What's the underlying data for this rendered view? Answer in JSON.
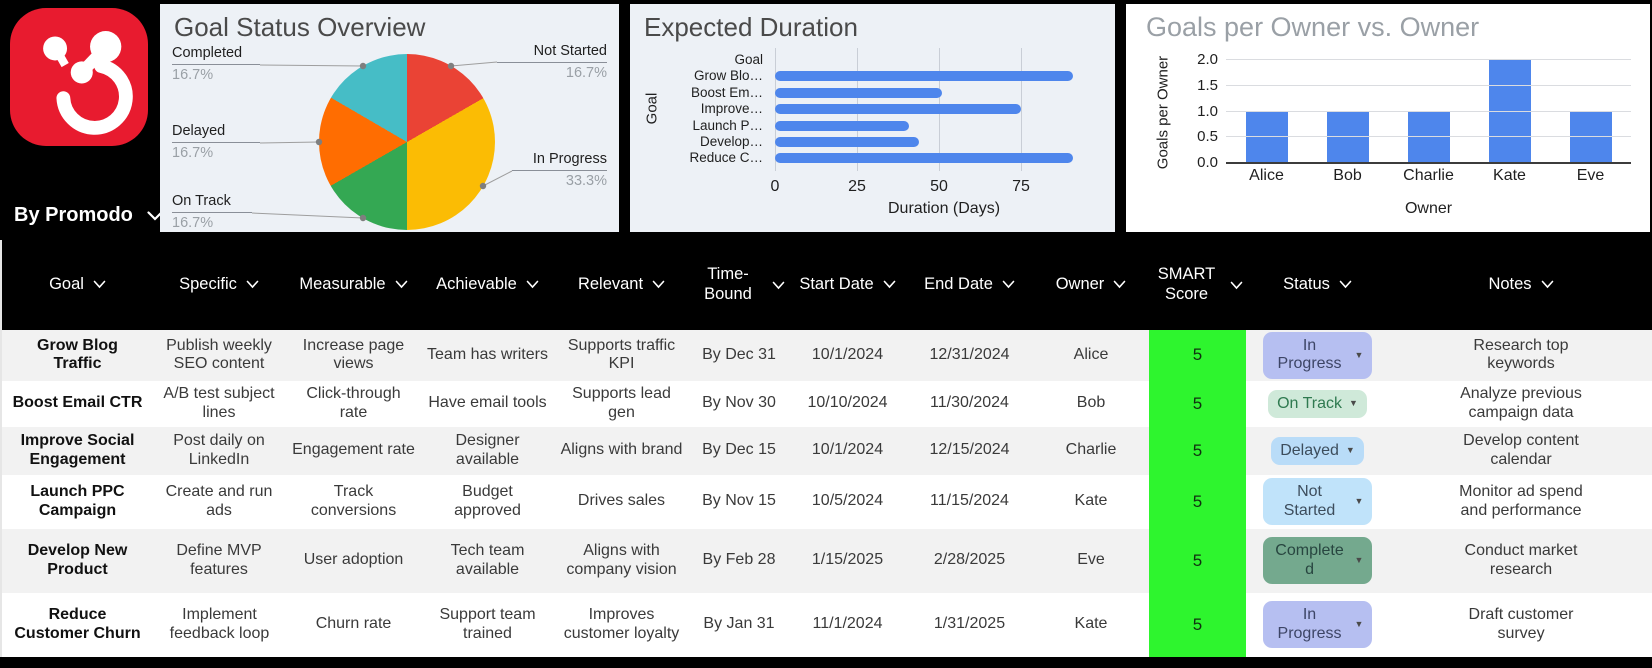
{
  "brand": {
    "by_label": "By Promodo",
    "logo_bg": "#e81b2f"
  },
  "chart_data": [
    {
      "type": "pie",
      "title": "Goal Status Overview",
      "legend_position": "outside-labels",
      "slices": [
        {
          "label": "Not Started",
          "value": 16.7,
          "pct_label": "16.7%",
          "color": "#ea4335"
        },
        {
          "label": "In Progress",
          "value": 33.3,
          "pct_label": "33.3%",
          "color": "#fbbc04"
        },
        {
          "label": "On Track",
          "value": 16.7,
          "pct_label": "16.7%",
          "color": "#34a853"
        },
        {
          "label": "Delayed",
          "value": 16.7,
          "pct_label": "16.7%",
          "color": "#ff6d01"
        },
        {
          "label": "Completed",
          "value": 16.7,
          "pct_label": "16.7%",
          "color": "#46bdc6"
        }
      ]
    },
    {
      "type": "bar",
      "orientation": "horizontal",
      "title": "Expected Duration",
      "xlabel": "Duration (Days)",
      "ylabel": "Goal",
      "categories": [
        "Goal",
        "Grow Blo…",
        "Boost Em…",
        "Improve…",
        "Launch P…",
        "Develop…",
        "Reduce C…"
      ],
      "values": [
        null,
        91,
        51,
        75,
        41,
        44,
        91
      ],
      "xticks": [
        0,
        25,
        50,
        75
      ],
      "xlim": [
        0,
        103
      ],
      "grid": true,
      "bar_color": "#4e86ec"
    },
    {
      "type": "bar",
      "orientation": "vertical",
      "title": "Goals per Owner vs. Owner",
      "xlabel": "Owner",
      "ylabel": "Goals per Owner",
      "categories": [
        "Alice",
        "Bob",
        "Charlie",
        "Kate",
        "Eve"
      ],
      "values": [
        1,
        1,
        1,
        2,
        1
      ],
      "yticks": [
        "2.0",
        "1.5",
        "1.0",
        "0.5",
        "0.0"
      ],
      "ylim": [
        0,
        2
      ],
      "grid": true,
      "bar_color": "#4e86ec"
    }
  ],
  "table": {
    "score_bg": "#2ef52e",
    "status_styles": {
      "In Progress": {
        "bg": "#b6bff1",
        "fg": "#3d4566"
      },
      "On Track": {
        "bg": "#cfe9d9",
        "fg": "#2f7a50"
      },
      "Delayed": {
        "bg": "#b9dcf8",
        "fg": "#3d4d5c"
      },
      "Not Started": {
        "bg": "#c0e3fa",
        "fg": "#3d4d5c"
      },
      "Completed": {
        "bg": "#74a98e",
        "fg": "#284640"
      }
    },
    "columns": [
      {
        "key": "goal",
        "label": "Goal"
      },
      {
        "key": "specific",
        "label": "Specific"
      },
      {
        "key": "measurable",
        "label": "Measurable"
      },
      {
        "key": "achievable",
        "label": "Achievable"
      },
      {
        "key": "relevant",
        "label": "Relevant"
      },
      {
        "key": "time_bound",
        "label": "Time-Bound"
      },
      {
        "key": "start_date",
        "label": "Start Date"
      },
      {
        "key": "end_date",
        "label": "End Date"
      },
      {
        "key": "owner",
        "label": "Owner"
      },
      {
        "key": "smart_score",
        "label": "SMART Score"
      },
      {
        "key": "status",
        "label": "Status"
      },
      {
        "key": "notes",
        "label": "Notes"
      }
    ],
    "rows": [
      {
        "goal": "Grow Blog Traffic",
        "specific": "Publish weekly SEO content",
        "measurable": "Increase page views",
        "achievable": "Team has writers",
        "relevant": "Supports traffic KPI",
        "time_bound": "By Dec 31",
        "start_date": "10/1/2024",
        "end_date": "12/31/2024",
        "owner": "Alice",
        "smart_score": "5",
        "status": "In Progress",
        "notes": "Research top keywords"
      },
      {
        "goal": "Boost Email CTR",
        "specific": "A/B test subject lines",
        "measurable": "Click-through rate",
        "achievable": "Have email tools",
        "relevant": "Supports lead gen",
        "time_bound": "By Nov 30",
        "start_date": "10/10/2024",
        "end_date": "11/30/2024",
        "owner": "Bob",
        "smart_score": "5",
        "status": "On Track",
        "notes": "Analyze previous campaign data"
      },
      {
        "goal": "Improve Social Engagement",
        "specific": "Post daily on LinkedIn",
        "measurable": "Engagement rate",
        "achievable": "Designer available",
        "relevant": "Aligns with brand",
        "time_bound": "By Dec 15",
        "start_date": "10/1/2024",
        "end_date": "12/15/2024",
        "owner": "Charlie",
        "smart_score": "5",
        "status": "Delayed",
        "notes": "Develop content calendar"
      },
      {
        "goal": "Launch PPC Campaign",
        "specific": "Create and run ads",
        "measurable": "Track conversions",
        "achievable": "Budget approved",
        "relevant": "Drives sales",
        "time_bound": "By Nov 15",
        "start_date": "10/5/2024",
        "end_date": "11/15/2024",
        "owner": "Kate",
        "smart_score": "5",
        "status": "Not Started",
        "notes": "Monitor ad spend and performance"
      },
      {
        "goal": "Develop New Product",
        "specific": "Define MVP features",
        "measurable": "User adoption",
        "achievable": "Tech team available",
        "relevant": "Aligns with company vision",
        "time_bound": "By Feb 28",
        "start_date": "1/15/2025",
        "end_date": "2/28/2025",
        "owner": "Eve",
        "smart_score": "5",
        "status": "Completed",
        "notes": "Conduct market research"
      },
      {
        "goal": "Reduce Customer Churn",
        "specific": "Implement feedback loop",
        "measurable": "Churn rate",
        "achievable": "Support team trained",
        "relevant": "Improves customer loyalty",
        "time_bound": "By Jan 31",
        "start_date": "11/1/2024",
        "end_date": "1/31/2025",
        "owner": "Kate",
        "smart_score": "5",
        "status": "In Progress",
        "notes": "Draft customer survey"
      }
    ]
  }
}
